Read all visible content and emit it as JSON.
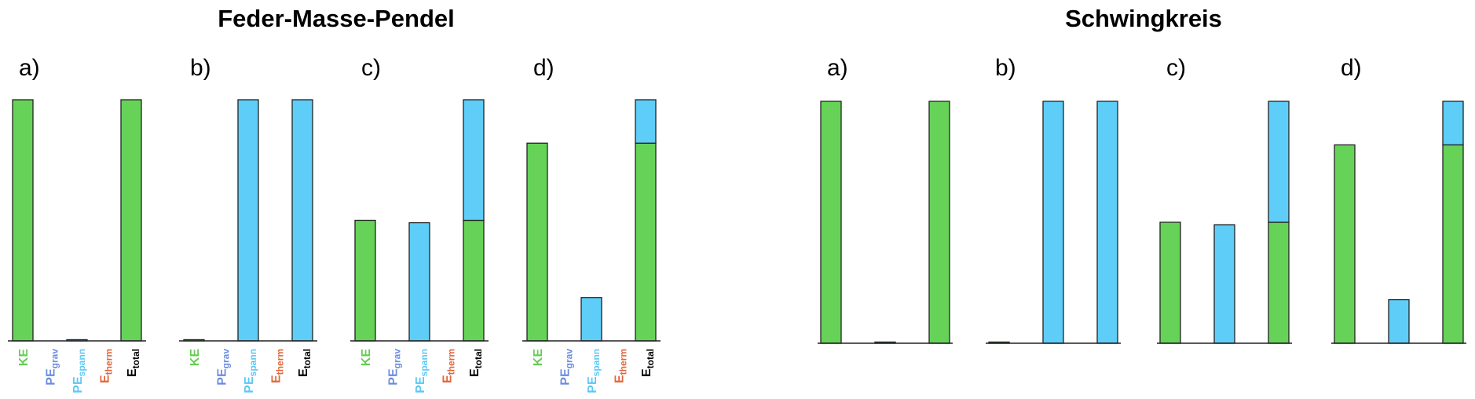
{
  "groups": [
    {
      "title": "Feder-Masse-Pendel",
      "charts": [
        {
          "type": "bar",
          "stacked": true,
          "title": "a)",
          "ylim": [
            0,
            100
          ],
          "categories": [
            {
              "text": "KE",
              "color": "#66cc55"
            },
            {
              "text": "PE",
              "sub": "grav",
              "color": "#6a8ce0"
            },
            {
              "text": "PE",
              "sub": "spann",
              "color": "#5cc8f5"
            },
            {
              "text": "E",
              "sub": "therm",
              "color": "#e0663a"
            },
            {
              "text": "E",
              "sub": "total",
              "color": "#000000"
            }
          ],
          "series": [
            {
              "color": "#66d358",
              "values": [
                100,
                0,
                0,
                0,
                100
              ]
            },
            {
              "color": "#5ecdf8",
              "values": [
                0,
                0,
                0.5,
                0,
                0
              ]
            }
          ]
        },
        {
          "type": "bar",
          "stacked": true,
          "title": "b)",
          "ylim": [
            0,
            100
          ],
          "categories": [
            {
              "text": "KE",
              "color": "#66cc55"
            },
            {
              "text": "PE",
              "sub": "grav",
              "color": "#6a8ce0"
            },
            {
              "text": "PE",
              "sub": "spann",
              "color": "#5cc8f5"
            },
            {
              "text": "E",
              "sub": "therm",
              "color": "#e0663a"
            },
            {
              "text": "E",
              "sub": "total",
              "color": "#000000"
            }
          ],
          "series": [
            {
              "color": "#66d358",
              "values": [
                0.5,
                0,
                0,
                0,
                0
              ]
            },
            {
              "color": "#5ecdf8",
              "values": [
                0,
                0,
                100,
                0,
                100
              ]
            }
          ]
        },
        {
          "type": "bar",
          "stacked": true,
          "title": "c)",
          "ylim": [
            0,
            100
          ],
          "categories": [
            {
              "text": "KE",
              "color": "#66cc55"
            },
            {
              "text": "PE",
              "sub": "grav",
              "color": "#6a8ce0"
            },
            {
              "text": "PE",
              "sub": "spann",
              "color": "#5cc8f5"
            },
            {
              "text": "E",
              "sub": "therm",
              "color": "#e0663a"
            },
            {
              "text": "E",
              "sub": "total",
              "color": "#000000"
            }
          ],
          "series": [
            {
              "color": "#66d358",
              "values": [
                50,
                0,
                0,
                0,
                50
              ]
            },
            {
              "color": "#5ecdf8",
              "values": [
                0,
                0,
                49,
                0,
                50
              ]
            }
          ]
        },
        {
          "type": "bar",
          "stacked": true,
          "title": "d)",
          "ylim": [
            0,
            100
          ],
          "categories": [
            {
              "text": "KE",
              "color": "#66cc55"
            },
            {
              "text": "PE",
              "sub": "grav",
              "color": "#6a8ce0"
            },
            {
              "text": "PE",
              "sub": "spann",
              "color": "#5cc8f5"
            },
            {
              "text": "E",
              "sub": "therm",
              "color": "#e0663a"
            },
            {
              "text": "E",
              "sub": "total",
              "color": "#000000"
            }
          ],
          "series": [
            {
              "color": "#66d358",
              "values": [
                82,
                0,
                0,
                0,
                82
              ]
            },
            {
              "color": "#5ecdf8",
              "values": [
                0,
                0,
                18,
                0,
                18
              ]
            }
          ]
        }
      ]
    },
    {
      "title": "Schwingkreis",
      "charts": [
        {
          "type": "bar",
          "stacked": true,
          "title": "a)",
          "ylim": [
            0,
            100
          ],
          "categories": [
            null,
            null,
            null
          ],
          "series": [
            {
              "color": "#66d358",
              "values": [
                100,
                0.5,
                100
              ]
            },
            {
              "color": "#5ecdf8",
              "values": [
                0,
                0,
                0
              ]
            }
          ]
        },
        {
          "type": "bar",
          "stacked": true,
          "title": "b)",
          "ylim": [
            0,
            100
          ],
          "categories": [
            null,
            null,
            null
          ],
          "series": [
            {
              "color": "#66d358",
              "values": [
                0.5,
                0,
                0
              ]
            },
            {
              "color": "#5ecdf8",
              "values": [
                0,
                100,
                100
              ]
            }
          ]
        },
        {
          "type": "bar",
          "stacked": true,
          "title": "c)",
          "ylim": [
            0,
            100
          ],
          "categories": [
            null,
            null,
            null
          ],
          "series": [
            {
              "color": "#66d358",
              "values": [
                50,
                0,
                50
              ]
            },
            {
              "color": "#5ecdf8",
              "values": [
                0,
                49,
                50
              ]
            }
          ]
        },
        {
          "type": "bar",
          "stacked": true,
          "title": "d)",
          "ylim": [
            0,
            100
          ],
          "categories": [
            null,
            null,
            null
          ],
          "series": [
            {
              "color": "#66d358",
              "values": [
                82,
                0,
                82
              ]
            },
            {
              "color": "#5ecdf8",
              "values": [
                0,
                18,
                18
              ]
            }
          ]
        }
      ]
    }
  ]
}
